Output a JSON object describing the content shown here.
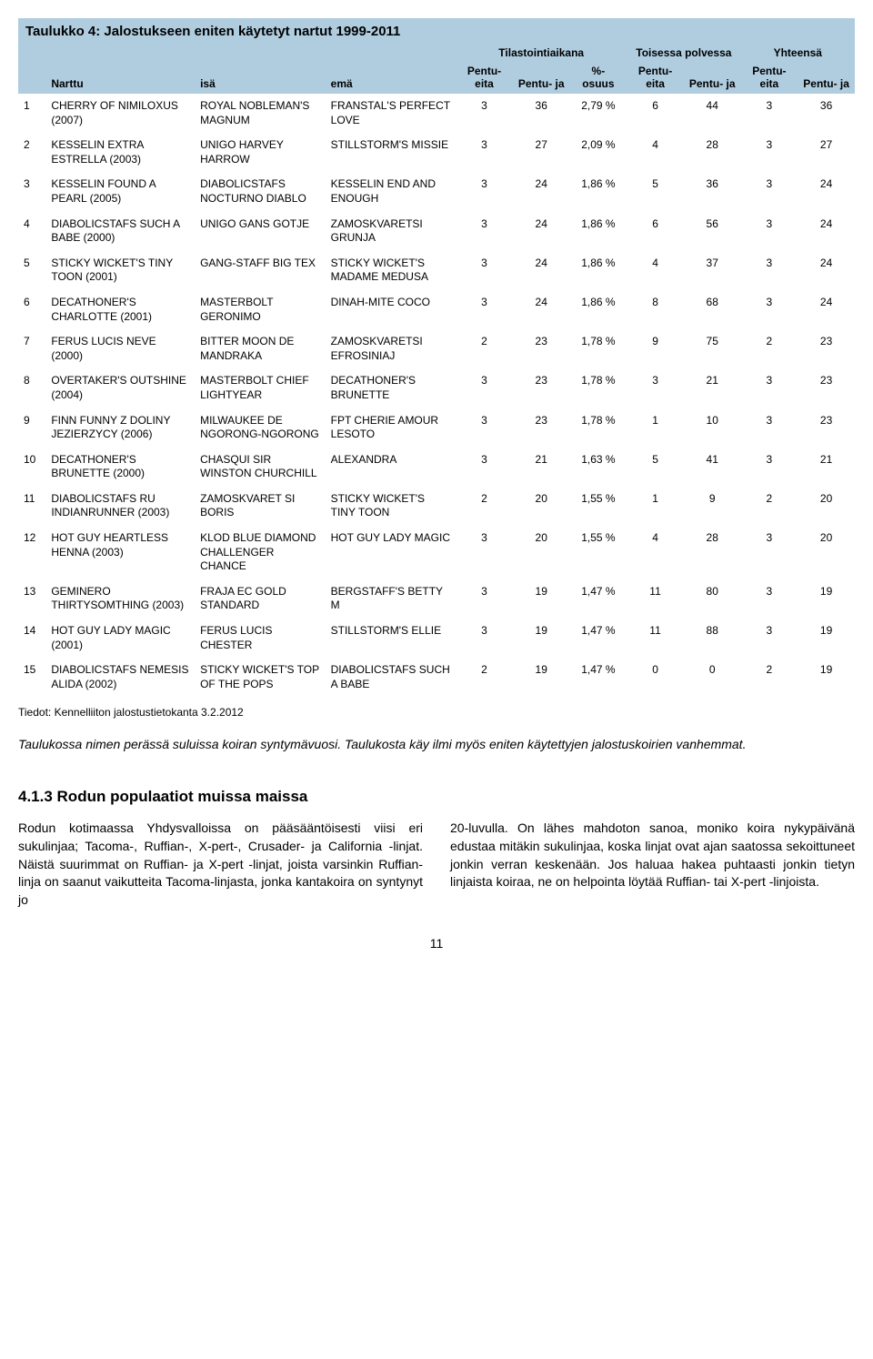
{
  "table": {
    "title": "Taulukko 4: Jalostukseen eniten käytetyt nartut 1999-2011",
    "group_headers": {
      "period": "Tilastointiaikana",
      "gen2": "Toisessa polvessa",
      "total": "Yhteensä"
    },
    "headers": {
      "narttu": "Narttu",
      "isa": "isä",
      "ema": "emä",
      "p_eita": "Pentu-\neita",
      "p_ja": "Pentu-\nja",
      "pct": "%-\nosuus"
    },
    "rows": [
      {
        "n": "1",
        "narttu": "CHERRY OF NIMILOXUS (2007)",
        "isa": "ROYAL NOBLEMAN'S MAGNUM",
        "ema": "FRANSTAL'S PERFECT LOVE",
        "a1": "3",
        "a2": "36",
        "a3": "2,79 %",
        "b1": "6",
        "b2": "44",
        "c1": "3",
        "c2": "36"
      },
      {
        "n": "2",
        "narttu": "KESSELIN EXTRA ESTRELLA (2003)",
        "isa": "UNIGO HARVEY HARROW",
        "ema": "STILLSTORM'S MISSIE",
        "a1": "3",
        "a2": "27",
        "a3": "2,09 %",
        "b1": "4",
        "b2": "28",
        "c1": "3",
        "c2": "27"
      },
      {
        "n": "3",
        "narttu": "KESSELIN FOUND A PEARL (2005)",
        "isa": "DIABOLICSTAFS NOCTURNO DIABLO",
        "ema": "KESSELIN END AND ENOUGH",
        "a1": "3",
        "a2": "24",
        "a3": "1,86 %",
        "b1": "5",
        "b2": "36",
        "c1": "3",
        "c2": "24"
      },
      {
        "n": "4",
        "narttu": "DIABOLICSTAFS SUCH A BABE (2000)",
        "isa": "UNIGO GANS GOTJE",
        "ema": "ZAMOSKVARETSI GRUNJA",
        "a1": "3",
        "a2": "24",
        "a3": "1,86 %",
        "b1": "6",
        "b2": "56",
        "c1": "3",
        "c2": "24"
      },
      {
        "n": "5",
        "narttu": "STICKY WICKET'S TINY TOON (2001)",
        "isa": "GANG-STAFF BIG TEX",
        "ema": "STICKY WICKET'S MADAME MEDUSA",
        "a1": "3",
        "a2": "24",
        "a3": "1,86 %",
        "b1": "4",
        "b2": "37",
        "c1": "3",
        "c2": "24"
      },
      {
        "n": "6",
        "narttu": "DECATHONER'S CHARLOTTE (2001)",
        "isa": "MASTERBOLT GERONIMO",
        "ema": "DINAH-MITE COCO",
        "a1": "3",
        "a2": "24",
        "a3": "1,86 %",
        "b1": "8",
        "b2": "68",
        "c1": "3",
        "c2": "24"
      },
      {
        "n": "7",
        "narttu": "FERUS LUCIS NEVE (2000)",
        "isa": "BITTER MOON DE MANDRAKA",
        "ema": "ZAMOSKVARETSI EFROSINIAJ",
        "a1": "2",
        "a2": "23",
        "a3": "1,78 %",
        "b1": "9",
        "b2": "75",
        "c1": "2",
        "c2": "23"
      },
      {
        "n": "8",
        "narttu": "OVERTAKER'S OUTSHINE (2004)",
        "isa": "MASTERBOLT CHIEF LIGHTYEAR",
        "ema": "DECATHONER'S BRUNETTE",
        "a1": "3",
        "a2": "23",
        "a3": "1,78 %",
        "b1": "3",
        "b2": "21",
        "c1": "3",
        "c2": "23"
      },
      {
        "n": "9",
        "narttu": "FINN FUNNY Z DOLINY JEZIERZYCY (2006)",
        "isa": "MILWAUKEE DE NGORONG-NGORONG",
        "ema": "FPT CHERIE AMOUR LESOTO",
        "a1": "3",
        "a2": "23",
        "a3": "1,78 %",
        "b1": "1",
        "b2": "10",
        "c1": "3",
        "c2": "23"
      },
      {
        "n": "10",
        "narttu": "DECATHONER'S BRUNETTE (2000)",
        "isa": "CHASQUI SIR WINSTON CHURCHILL",
        "ema": "ALEXANDRA",
        "a1": "3",
        "a2": "21",
        "a3": "1,63 %",
        "b1": "5",
        "b2": "41",
        "c1": "3",
        "c2": "21"
      },
      {
        "n": "11",
        "narttu": "DIABOLICSTAFS RU INDIANRUNNER (2003)",
        "isa": "ZAMOSKVARET SI BORIS",
        "ema": "STICKY WICKET'S TINY TOON",
        "a1": "2",
        "a2": "20",
        "a3": "1,55 %",
        "b1": "1",
        "b2": "9",
        "c1": "2",
        "c2": "20"
      },
      {
        "n": "12",
        "narttu": "HOT GUY HEARTLESS HENNA (2003)",
        "isa": "KLOD BLUE DIAMOND CHALLENGER CHANCE",
        "ema": "HOT GUY LADY MAGIC",
        "a1": "3",
        "a2": "20",
        "a3": "1,55 %",
        "b1": "4",
        "b2": "28",
        "c1": "3",
        "c2": "20"
      },
      {
        "n": "13",
        "narttu": "GEMINERO THIRTYSOMTHING (2003)",
        "isa": "FRAJA EC GOLD STANDARD",
        "ema": "BERGSTAFF'S BETTY M",
        "a1": "3",
        "a2": "19",
        "a3": "1,47 %",
        "b1": "11",
        "b2": "80",
        "c1": "3",
        "c2": "19"
      },
      {
        "n": "14",
        "narttu": "HOT GUY LADY MAGIC (2001)",
        "isa": "FERUS LUCIS CHESTER",
        "ema": "STILLSTORM'S ELLIE",
        "a1": "3",
        "a2": "19",
        "a3": "1,47 %",
        "b1": "11",
        "b2": "88",
        "c1": "3",
        "c2": "19"
      },
      {
        "n": "15",
        "narttu": "DIABOLICSTAFS NEMESIS ALIDA (2002)",
        "isa": "STICKY WICKET'S TOP OF THE POPS",
        "ema": "DIABOLICSTAFS SUCH A BABE",
        "a1": "2",
        "a2": "19",
        "a3": "1,47 %",
        "b1": "0",
        "b2": "0",
        "c1": "2",
        "c2": "19"
      }
    ]
  },
  "source": "Tiedot: Kennelliiton jalostustietokanta 3.2.2012",
  "caption": "Taulukossa nimen perässä suluissa koiran syntymävuosi. Taulukosta käy ilmi myös eniten käytettyjen jalostuskoirien vanhemmat.",
  "section": {
    "heading": "4.1.3  Rodun populaatiot muissa maissa",
    "left": "Rodun kotimaassa Yhdysvalloissa on pääsääntöisesti viisi eri sukulinjaa; Tacoma-, Ruffian-, X-pert-, Crusader- ja California -linjat. Näistä suurimmat on Ruffian- ja X-pert -linjat, joista varsinkin Ruffian-linja on saanut vaikutteita Tacoma-linjasta, jonka kantakoira on syntynyt jo",
    "right": "20-luvulla. On lähes mahdoton sanoa, moniko koira nykypäivänä edustaa mitäkin sukulinjaa, koska linjat ovat ajan saatossa sekoittuneet jonkin verran keskenään. Jos haluaa hakea puhtaasti jonkin tietyn linjaista koiraa, ne on helpointa löytää Ruffian- tai X-pert -linjoista."
  },
  "page": "11",
  "colors": {
    "header_bg": "#b0cde0"
  }
}
